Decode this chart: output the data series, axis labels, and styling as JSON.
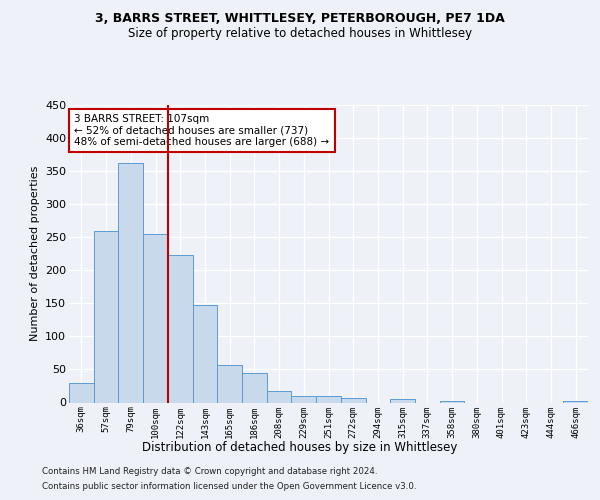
{
  "title1": "3, BARRS STREET, WHITTLESEY, PETERBOROUGH, PE7 1DA",
  "title2": "Size of property relative to detached houses in Whittlesey",
  "xlabel": "Distribution of detached houses by size in Whittlesey",
  "ylabel": "Number of detached properties",
  "categories": [
    "36sqm",
    "57sqm",
    "79sqm",
    "100sqm",
    "122sqm",
    "143sqm",
    "165sqm",
    "186sqm",
    "208sqm",
    "229sqm",
    "251sqm",
    "272sqm",
    "294sqm",
    "315sqm",
    "337sqm",
    "358sqm",
    "380sqm",
    "401sqm",
    "423sqm",
    "444sqm",
    "466sqm"
  ],
  "values": [
    30,
    260,
    362,
    255,
    223,
    148,
    57,
    44,
    17,
    10,
    10,
    7,
    0,
    5,
    0,
    3,
    0,
    0,
    0,
    0,
    3
  ],
  "bar_color": "#c9d9ec",
  "bar_edge_color": "#5b9bd5",
  "vline_index": 3,
  "vline_color": "#c00000",
  "annotation_line1": "3 BARRS STREET: 107sqm",
  "annotation_line2": "← 52% of detached houses are smaller (737)",
  "annotation_line3": "48% of semi-detached houses are larger (688) →",
  "annotation_box_color": "#ffffff",
  "annotation_box_edge": "#c00000",
  "footer1": "Contains HM Land Registry data © Crown copyright and database right 2024.",
  "footer2": "Contains public sector information licensed under the Open Government Licence v3.0.",
  "ylim": [
    0,
    450
  ],
  "yticks": [
    0,
    50,
    100,
    150,
    200,
    250,
    300,
    350,
    400,
    450
  ],
  "bg_color": "#eef2f8",
  "plot_bg_color": "#eef2f8"
}
